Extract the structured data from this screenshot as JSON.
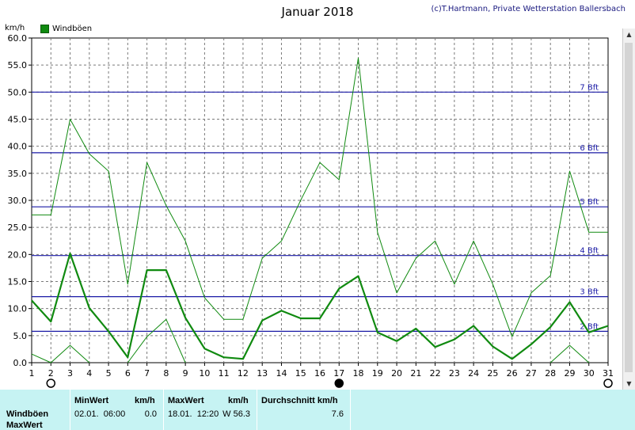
{
  "header": {
    "title": "Januar 2018",
    "credit": "(c)T.Hartmann, Private Wetterstation Ballersbach",
    "unit": "km/h"
  },
  "legend": {
    "label": "Windböen",
    "color": "#108a10"
  },
  "chart_data": {
    "type": "line",
    "x": [
      1,
      2,
      3,
      4,
      5,
      6,
      7,
      8,
      9,
      10,
      11,
      12,
      13,
      14,
      15,
      16,
      17,
      18,
      19,
      20,
      21,
      22,
      23,
      24,
      25,
      26,
      27,
      28,
      29,
      30,
      31
    ],
    "ylim": [
      0,
      60
    ],
    "yticks": [
      "0.0",
      "5.0",
      "10.0",
      "15.0",
      "20.0",
      "25.0",
      "30.0",
      "35.0",
      "40.0",
      "45.0",
      "50.0",
      "55.0",
      "60.0"
    ],
    "grid": true,
    "series": [
      {
        "name": "Windböen",
        "role": "mean",
        "color": "#108a10",
        "values": [
          11.5,
          7.6,
          20.2,
          10.1,
          5.8,
          1.0,
          17.1,
          17.1,
          8.3,
          2.6,
          1.0,
          0.7,
          7.8,
          9.6,
          8.2,
          8.2,
          13.7,
          16.0,
          5.6,
          4.0,
          6.3,
          2.9,
          4.3,
          6.8,
          3.0,
          0.7,
          3.4,
          6.6,
          11.2,
          5.6,
          6.8
        ]
      },
      {
        "role": "max",
        "color": "#108a10",
        "values": [
          27.3,
          27.3,
          45.0,
          38.6,
          35.4,
          14.5,
          37.0,
          29.0,
          22.5,
          12.0,
          8.0,
          8.0,
          19.3,
          22.5,
          30.0,
          37.0,
          33.8,
          56.3,
          24.1,
          12.9,
          19.3,
          22.5,
          14.5,
          22.5,
          14.5,
          4.8,
          12.9,
          16.1,
          35.4,
          24.1,
          24.1
        ]
      },
      {
        "role": "min",
        "color": "#108a10",
        "values": [
          1.6,
          0.0,
          3.2,
          0.0,
          null,
          0.0,
          4.8,
          8.0,
          0.0,
          null,
          null,
          null,
          null,
          null,
          null,
          null,
          null,
          null,
          null,
          null,
          null,
          null,
          null,
          null,
          null,
          null,
          null,
          0.0,
          3.2,
          0.0,
          null
        ]
      }
    ],
    "reference_lines": [
      {
        "label": "2 Bft",
        "value": 5.8
      },
      {
        "label": "3 Bft",
        "value": 12.2
      },
      {
        "label": "4 Bft",
        "value": 19.8
      },
      {
        "label": "5 Bft",
        "value": 28.8
      },
      {
        "label": "6 Bft",
        "value": 38.8
      },
      {
        "label": "7 Bft",
        "value": 50.0
      }
    ],
    "moon_phases": [
      {
        "day": 2,
        "phase": "full"
      },
      {
        "day": 17,
        "phase": "new"
      },
      {
        "day": 31,
        "phase": "full"
      }
    ]
  },
  "stats": {
    "row_labels": [
      "Windböen",
      "MaxWert"
    ],
    "min_header": "MinWert",
    "min_unit": "km/h",
    "min_time": "02.01.  06:00",
    "min_value": "0.0",
    "max_header": "MaxWert",
    "max_unit": "km/h",
    "max_time": "18.01.  12:20",
    "max_value": "W 56.3",
    "avg_header": "Durchschnitt km/h",
    "avg_value": "7.6"
  }
}
